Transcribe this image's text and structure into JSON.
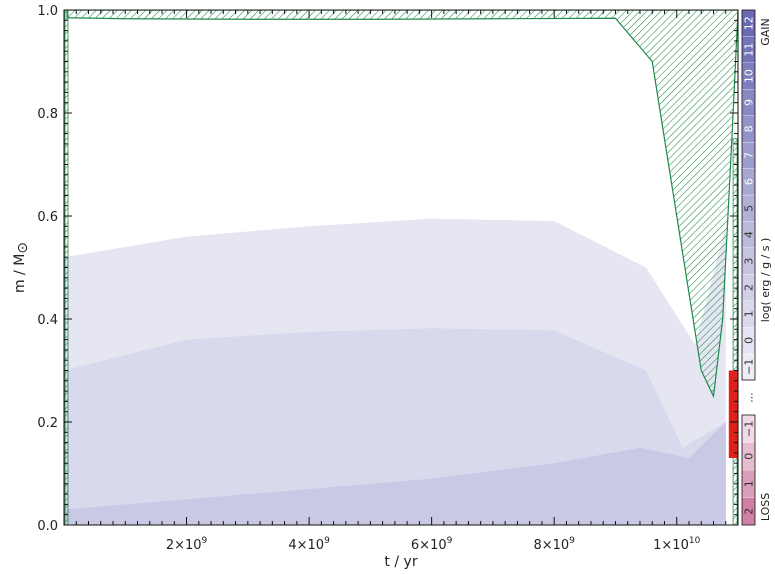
{
  "chart_data": {
    "type": "area",
    "xlabel": "t / yr",
    "ylabel": "m  /  M",
    "ylabel_symbol": "⊙",
    "xlim": [
      0,
      11000000000
    ],
    "ylim": [
      0.0,
      1.0
    ],
    "x_ticks": [
      {
        "value": 2000000000,
        "mantissa": "2×10",
        "exp": "9"
      },
      {
        "value": 4000000000,
        "mantissa": "4×10",
        "exp": "9"
      },
      {
        "value": 6000000000,
        "mantissa": "6×10",
        "exp": "9"
      },
      {
        "value": 8000000000,
        "mantissa": "8×10",
        "exp": "9"
      },
      {
        "value": 10000000000,
        "mantissa": "1×10",
        "exp": "10"
      }
    ],
    "y_ticks": [
      "0.0",
      "0.2",
      "0.4",
      "0.6",
      "0.8",
      "1.0"
    ],
    "grid": false,
    "colorbar": {
      "title": "log( erg / g / s )",
      "gain_label": "GAIN",
      "loss_label": "LOSS",
      "gain_levels": [
        "−1",
        "0",
        "1",
        "2",
        "3",
        "4",
        "5",
        "6",
        "7",
        "8",
        "9",
        "10",
        "11",
        "12"
      ],
      "loss_levels": [
        "2",
        "1",
        "0",
        "−1"
      ],
      "ellipsis": "...",
      "gain_color": "#6a6ab4",
      "loss_color": "#c86a96"
    },
    "convective_envelope": {
      "color": "#1f8a4c",
      "points": [
        [
          50000000.0,
          0.985
        ],
        [
          1000000000.0,
          0.983
        ],
        [
          3000000000.0,
          0.982
        ],
        [
          5000000000.0,
          0.982
        ],
        [
          7000000000.0,
          0.983
        ],
        [
          9000000000.0,
          0.984
        ],
        [
          9600000000.0,
          0.9
        ],
        [
          10000000000.0,
          0.6
        ],
        [
          10400000000.0,
          0.3
        ],
        [
          10600000000.0,
          0.25
        ],
        [
          10750000000.0,
          0.4
        ],
        [
          10900000000.0,
          0.75
        ]
      ]
    },
    "burning_regions": [
      {
        "level": 0,
        "color": "#e6e6f3",
        "top": [
          [
            0,
            0.52
          ],
          [
            2000000000.0,
            0.56
          ],
          [
            4000000000.0,
            0.58
          ],
          [
            6000000000.0,
            0.595
          ],
          [
            8000000000.0,
            0.59
          ],
          [
            9500000000.0,
            0.5
          ],
          [
            10300000000.0,
            0.35
          ],
          [
            10800000000.0,
            0.58
          ]
        ]
      },
      {
        "level": 1,
        "color": "#d9d9ee",
        "top": [
          [
            0,
            0.3
          ],
          [
            2000000000.0,
            0.36
          ],
          [
            4000000000.0,
            0.375
          ],
          [
            6000000000.0,
            0.382
          ],
          [
            8000000000.0,
            0.378
          ],
          [
            9500000000.0,
            0.3
          ],
          [
            10100000000.0,
            0.15
          ],
          [
            10800000000.0,
            0.2
          ]
        ]
      },
      {
        "level": 2,
        "color": "#c9c9e6",
        "top": [
          [
            0,
            0.03
          ],
          [
            2000000000.0,
            0.05
          ],
          [
            4000000000.0,
            0.07
          ],
          [
            6000000000.0,
            0.09
          ],
          [
            8000000000.0,
            0.12
          ],
          [
            9400000000.0,
            0.15
          ],
          [
            10200000000.0,
            0.13
          ],
          [
            10800000000.0,
            0.2
          ]
        ]
      }
    ],
    "loss_region": {
      "color": "#e0201a",
      "x": [
        10850000000.0,
        11000000000.0
      ],
      "y": [
        0.13,
        0.3
      ]
    }
  }
}
